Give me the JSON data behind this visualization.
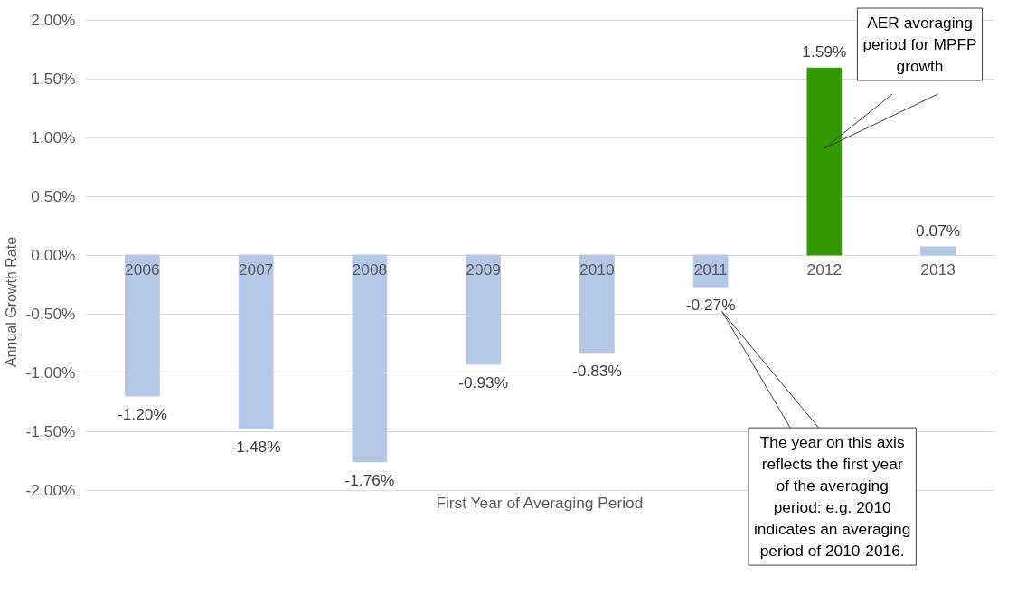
{
  "chart_data": {
    "type": "bar",
    "xlabel": "First Year of Averaging Period",
    "ylabel": "Annual Growth Rate",
    "categories": [
      "2006",
      "2007",
      "2008",
      "2009",
      "2010",
      "2011",
      "2012",
      "2013"
    ],
    "values": [
      -1.2,
      -1.48,
      -1.76,
      -0.93,
      -0.83,
      -0.27,
      1.59,
      0.07
    ],
    "colors": [
      "#b4c7e7",
      "#b4c7e7",
      "#b4c7e7",
      "#b4c7e7",
      "#b4c7e7",
      "#b4c7e7",
      "#339900",
      "#b4c7e7"
    ],
    "value_labels": [
      "-1.20%",
      "-1.48%",
      "-1.76%",
      "-0.93%",
      "-0.83%",
      "-0.27%",
      "1.59%",
      "0.07%"
    ],
    "ylim": [
      -2,
      2
    ],
    "yticks": [
      {
        "value": -2,
        "label": "-2.00%"
      },
      {
        "value": -1.5,
        "label": "-1.50%"
      },
      {
        "value": -1,
        "label": "-1.00%"
      },
      {
        "value": -0.5,
        "label": "-0.50%"
      },
      {
        "value": 0,
        "label": "0.00%"
      },
      {
        "value": 0.5,
        "label": "0.50%"
      },
      {
        "value": 1,
        "label": "1.00%"
      },
      {
        "value": 1.5,
        "label": "1.50%"
      },
      {
        "value": 2,
        "label": "2.00%"
      }
    ],
    "grid": "y",
    "annotations": [
      "AER averaging period for MPFP growth",
      "The year on this axis reflects the first year of the averaging period: e.g. 2010 indicates an averaging period of 2010-2016."
    ]
  }
}
